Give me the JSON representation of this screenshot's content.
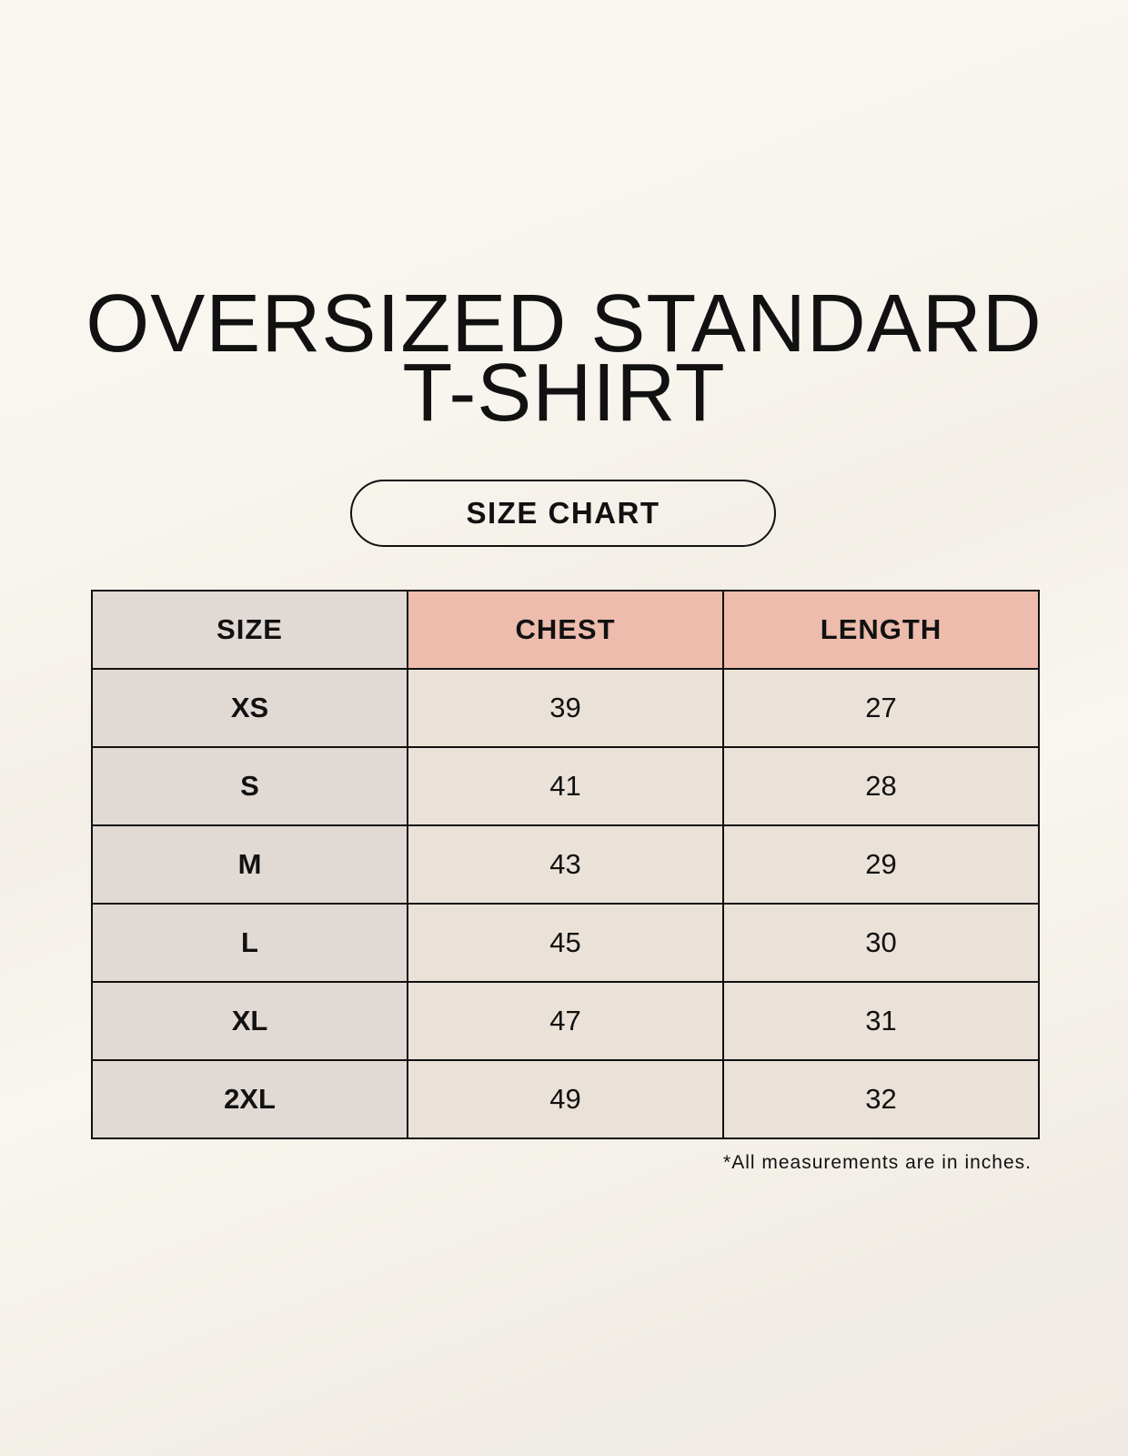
{
  "title_lines": [
    "OVERSIZED STANDARD",
    "T-SHIRT"
  ],
  "badge": "SIZE CHART",
  "colors": {
    "size_column": "#e1d9d4",
    "header_highlight": "#edbcad",
    "cells": "#eae2d8"
  },
  "table": {
    "headers": [
      "SIZE",
      "CHEST",
      "LENGTH"
    ],
    "rows": [
      [
        "XS",
        "39",
        "27"
      ],
      [
        "S",
        "41",
        "28"
      ],
      [
        "M",
        "43",
        "29"
      ],
      [
        "L",
        "45",
        "30"
      ],
      [
        "XL",
        "47",
        "31"
      ],
      [
        "2XL",
        "49",
        "32"
      ]
    ]
  },
  "footnote": "*All measurements are in inches."
}
